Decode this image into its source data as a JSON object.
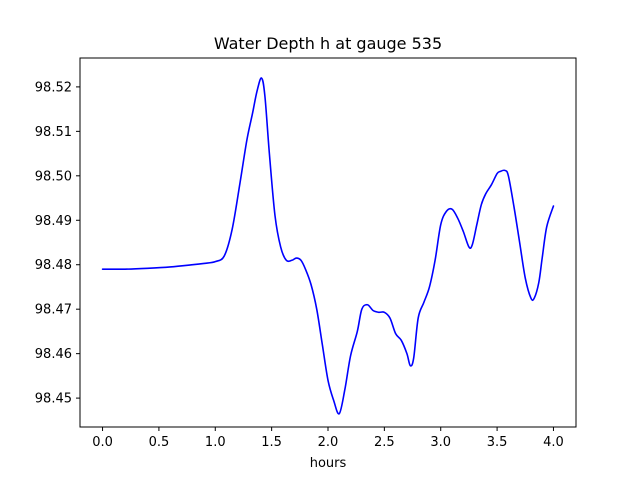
{
  "chart_data": {
    "type": "line",
    "title": "Water Depth h at gauge 535",
    "xlabel": "hours",
    "ylabel": "",
    "xlim": [
      -0.2,
      4.2
    ],
    "ylim": [
      98.4435,
      98.5265
    ],
    "xticks": [
      0.0,
      0.5,
      1.0,
      1.5,
      2.0,
      2.5,
      3.0,
      3.5,
      4.0
    ],
    "xtick_labels": [
      "0.0",
      "0.5",
      "1.0",
      "1.5",
      "2.0",
      "2.5",
      "3.0",
      "3.5",
      "4.0"
    ],
    "yticks": [
      98.45,
      98.46,
      98.47,
      98.48,
      98.49,
      98.5,
      98.51,
      98.52
    ],
    "ytick_labels": [
      "98.45",
      "98.46",
      "98.47",
      "98.48",
      "98.49",
      "98.50",
      "98.51",
      "98.52"
    ],
    "grid": false,
    "legend": "none",
    "series": [
      {
        "color": "#0000ff",
        "x": [
          0.0,
          0.2,
          0.4,
          0.6,
          0.8,
          0.9,
          1.0,
          1.08,
          1.15,
          1.22,
          1.28,
          1.33,
          1.37,
          1.41,
          1.44,
          1.48,
          1.53,
          1.58,
          1.63,
          1.68,
          1.72,
          1.76,
          1.8,
          1.85,
          1.9,
          1.95,
          2.0,
          2.05,
          2.1,
          2.15,
          2.2,
          2.26,
          2.3,
          2.35,
          2.4,
          2.45,
          2.5,
          2.55,
          2.6,
          2.65,
          2.7,
          2.73,
          2.76,
          2.8,
          2.85,
          2.9,
          2.95,
          3.0,
          3.05,
          3.1,
          3.15,
          3.2,
          3.25,
          3.28,
          3.32,
          3.36,
          3.4,
          3.45,
          3.5,
          3.53,
          3.57,
          3.6,
          3.65,
          3.7,
          3.75,
          3.8,
          3.83,
          3.87,
          3.9,
          3.94,
          4.0
        ],
        "y": [
          98.479,
          98.479,
          98.4792,
          98.4795,
          98.48,
          98.4803,
          98.4807,
          98.482,
          98.488,
          98.4985,
          98.508,
          98.514,
          98.519,
          98.522,
          98.518,
          98.505,
          98.491,
          98.484,
          98.481,
          98.481,
          98.4815,
          98.481,
          98.479,
          98.4755,
          98.47,
          98.462,
          98.454,
          98.4495,
          98.4465,
          98.452,
          98.4595,
          98.465,
          98.47,
          98.471,
          98.4697,
          98.4693,
          98.4693,
          98.468,
          98.4645,
          98.463,
          98.46,
          98.4573,
          98.459,
          98.468,
          98.4715,
          98.475,
          98.481,
          98.489,
          98.492,
          98.4925,
          98.4905,
          98.4875,
          98.484,
          98.4845,
          98.489,
          98.4935,
          98.496,
          98.498,
          98.5005,
          98.501,
          98.5012,
          98.5,
          98.493,
          98.485,
          98.477,
          98.4725,
          98.4725,
          98.476,
          98.4815,
          98.4885,
          98.4932
        ]
      }
    ]
  }
}
